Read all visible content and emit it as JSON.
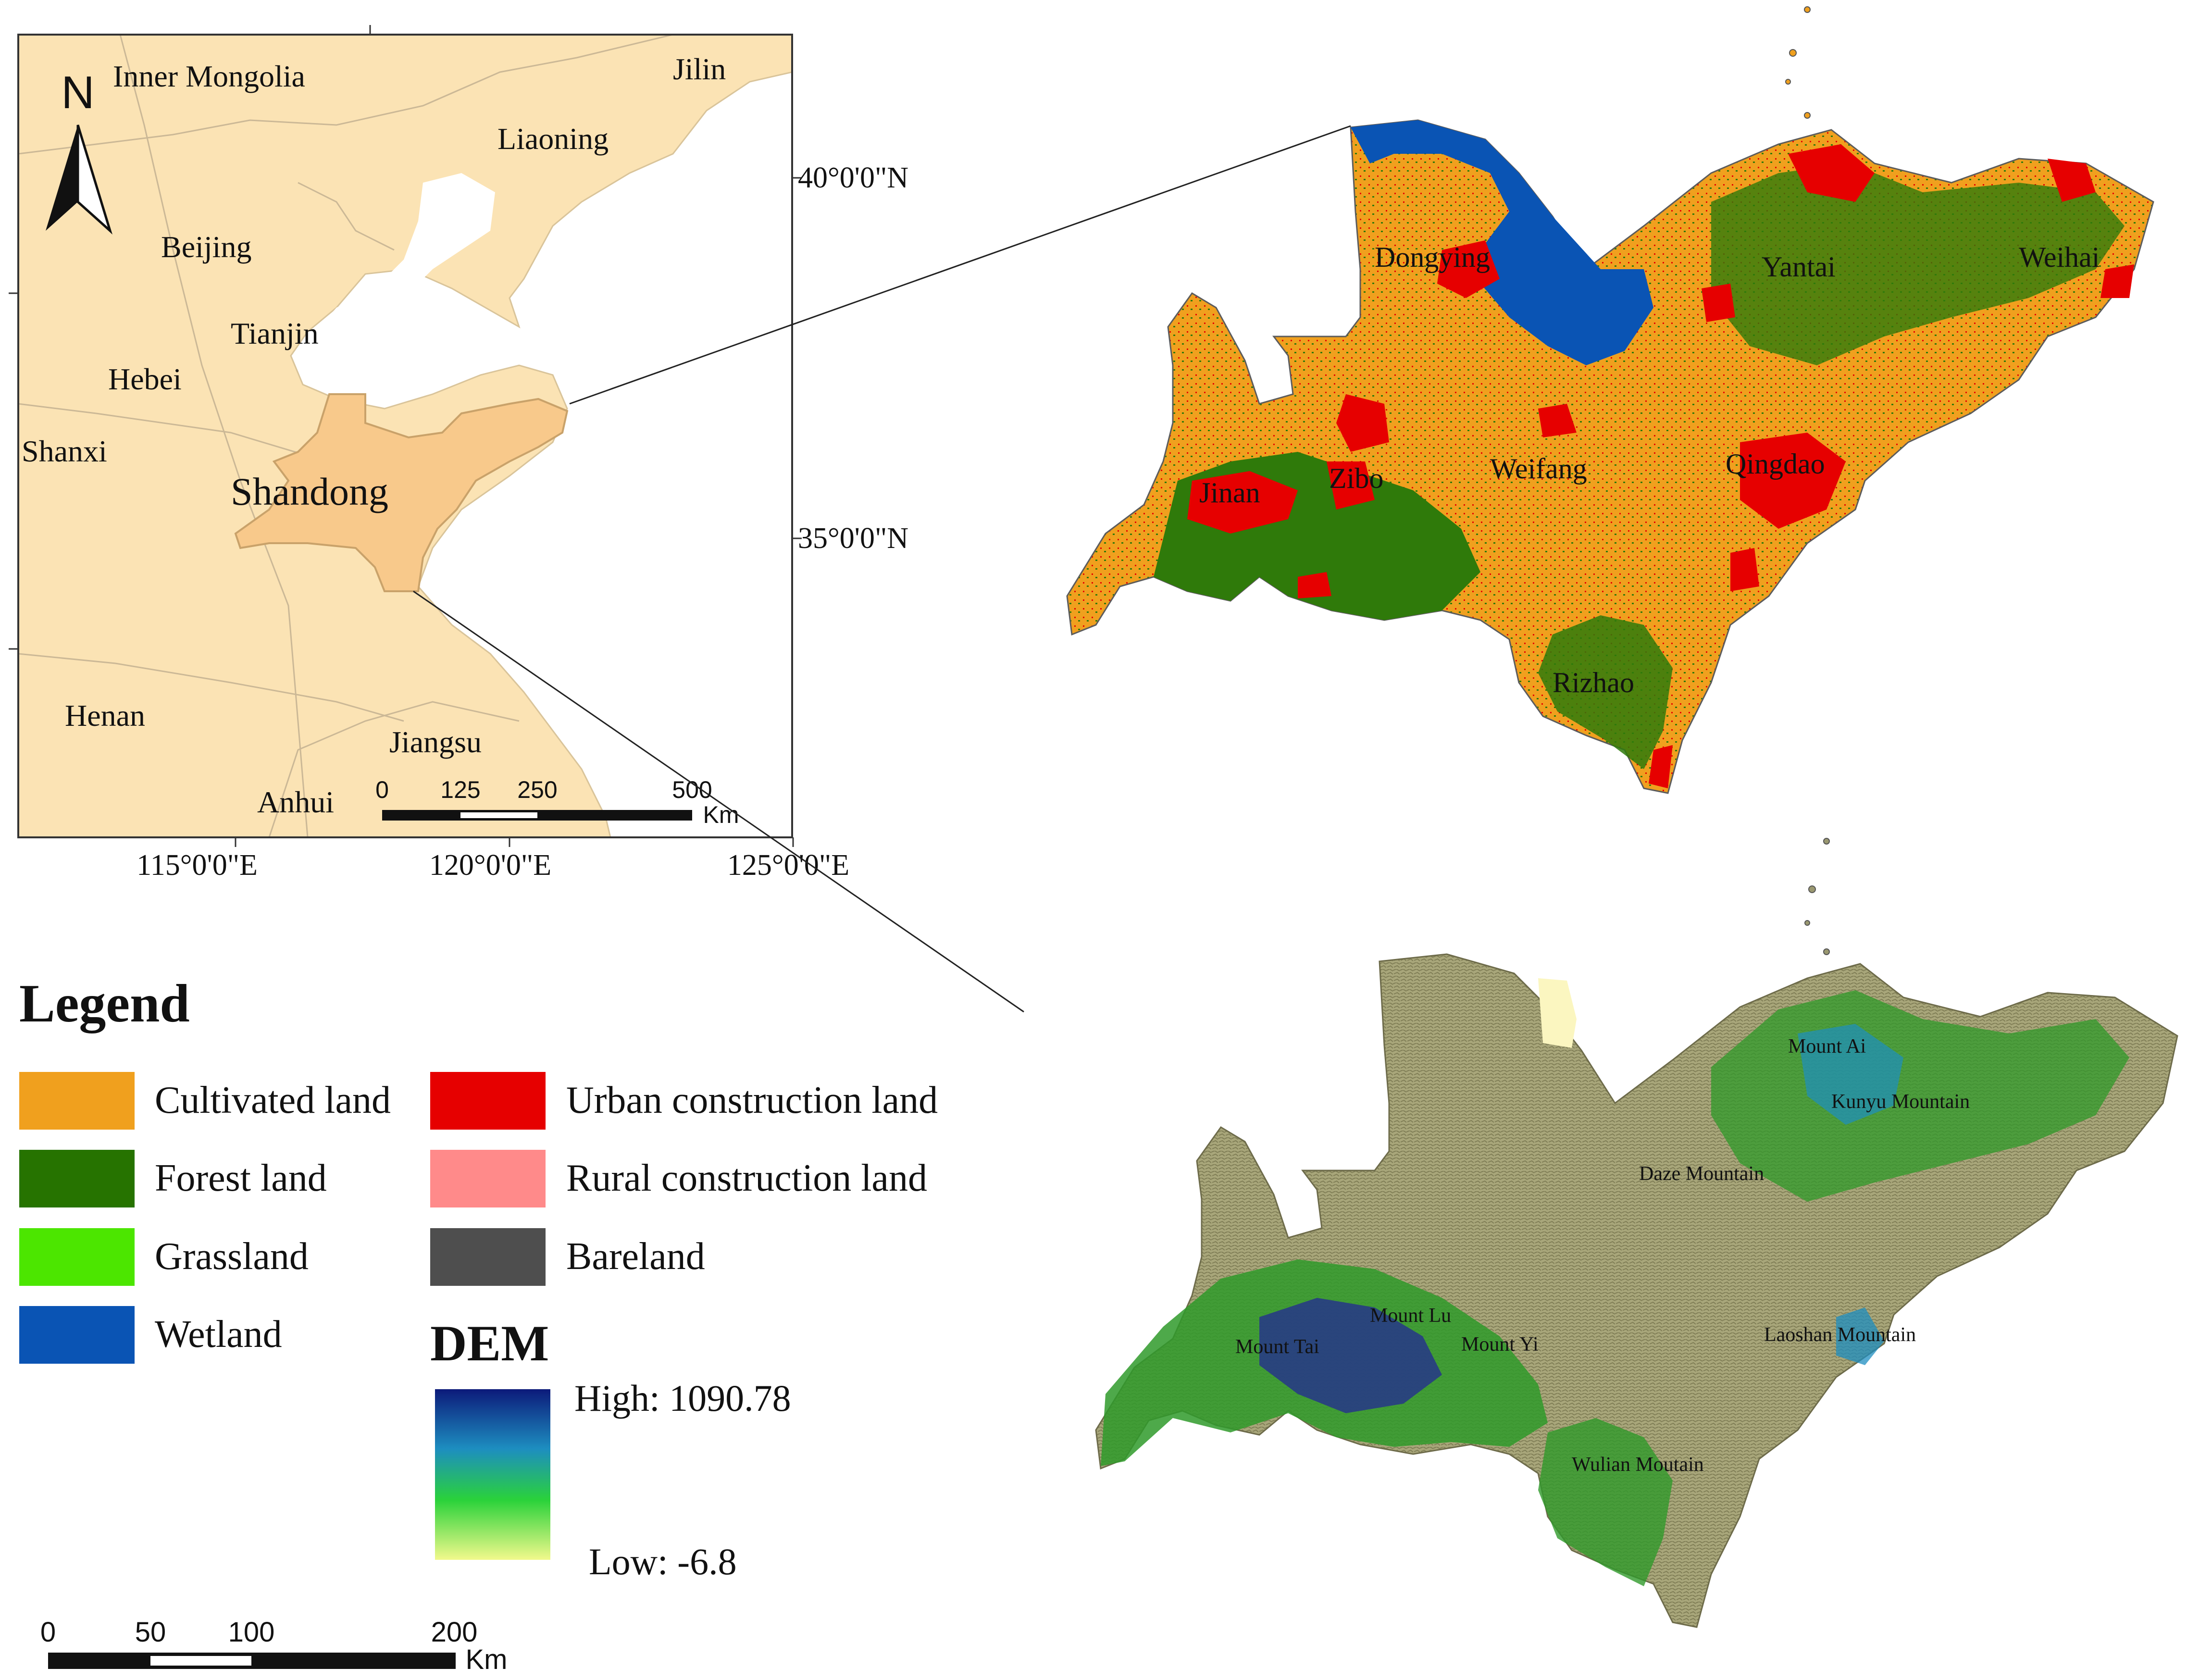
{
  "inset_map": {
    "north_label": "N",
    "places": {
      "inner_mongolia": "Inner Mongolia",
      "jilin": "Jilin",
      "liaoning": "Liaoning",
      "beijing": "Beijing",
      "tianjin": "Tianjin",
      "hebei": "Hebei",
      "shanxi": "Shanxi",
      "shandong": "Shandong",
      "henan": "Henan",
      "jiangsu": "Jiangsu",
      "anhui": "Anhui"
    },
    "lat_labels": [
      "40°0'0\"N",
      "35°0'0\"N"
    ],
    "lon_labels": [
      "115°0'0\"E",
      "120°0'0\"E",
      "125°0'0\"E"
    ],
    "scale_bar": {
      "ticks": [
        "0",
        "125",
        "250",
        "500"
      ],
      "unit": "Km"
    },
    "colors": {
      "land": "#fbe3b4",
      "shandong": "#f8c98b",
      "sea": "#ffffff"
    }
  },
  "landuse_map": {
    "cities": {
      "dongying": "Dongying",
      "yantai": "Yantai",
      "weihai": "Weihai",
      "jinan": "Jinan",
      "zibo": "Zibo",
      "weifang": "Weifang",
      "qingdao": "Qingdao",
      "rizhao": "Rizhao"
    }
  },
  "dem_map": {
    "mountains": {
      "mount_ai": "Mount Ai",
      "kunyu": "Kunyu Mountain",
      "daze": "Daze Mountain",
      "mount_lu": "Mount Lu",
      "mount_tai": "Mount Tai",
      "mount_yi": "Mount Yi",
      "laoshan": "Laoshan Mountain",
      "wulian": "Wulian Moutain"
    }
  },
  "legend": {
    "title": "Legend",
    "items": [
      {
        "label": "Cultivated land",
        "color": "#f0a01e"
      },
      {
        "label": "Forest land",
        "color": "#267300"
      },
      {
        "label": "Grassland",
        "color": "#4ce600"
      },
      {
        "label": "Wetland",
        "color": "#0a54b4"
      },
      {
        "label": "Urban construction land",
        "color": "#e60000"
      },
      {
        "label": "Rural construction land",
        "color": "#ff8a8a"
      },
      {
        "label": "Bareland",
        "color": "#4e4e4e"
      }
    ],
    "dem": {
      "title": "DEM",
      "high_label": "High: 1090.78",
      "low_label": "Low: -6.8",
      "high": 1090.78,
      "low": -6.8,
      "colors": [
        "#0c1a7a",
        "#1d8ec0",
        "#2ad23a",
        "#f2f98c"
      ]
    }
  },
  "main_scale_bar": {
    "ticks": [
      "0",
      "50",
      "100",
      "200"
    ],
    "unit": "Km"
  }
}
